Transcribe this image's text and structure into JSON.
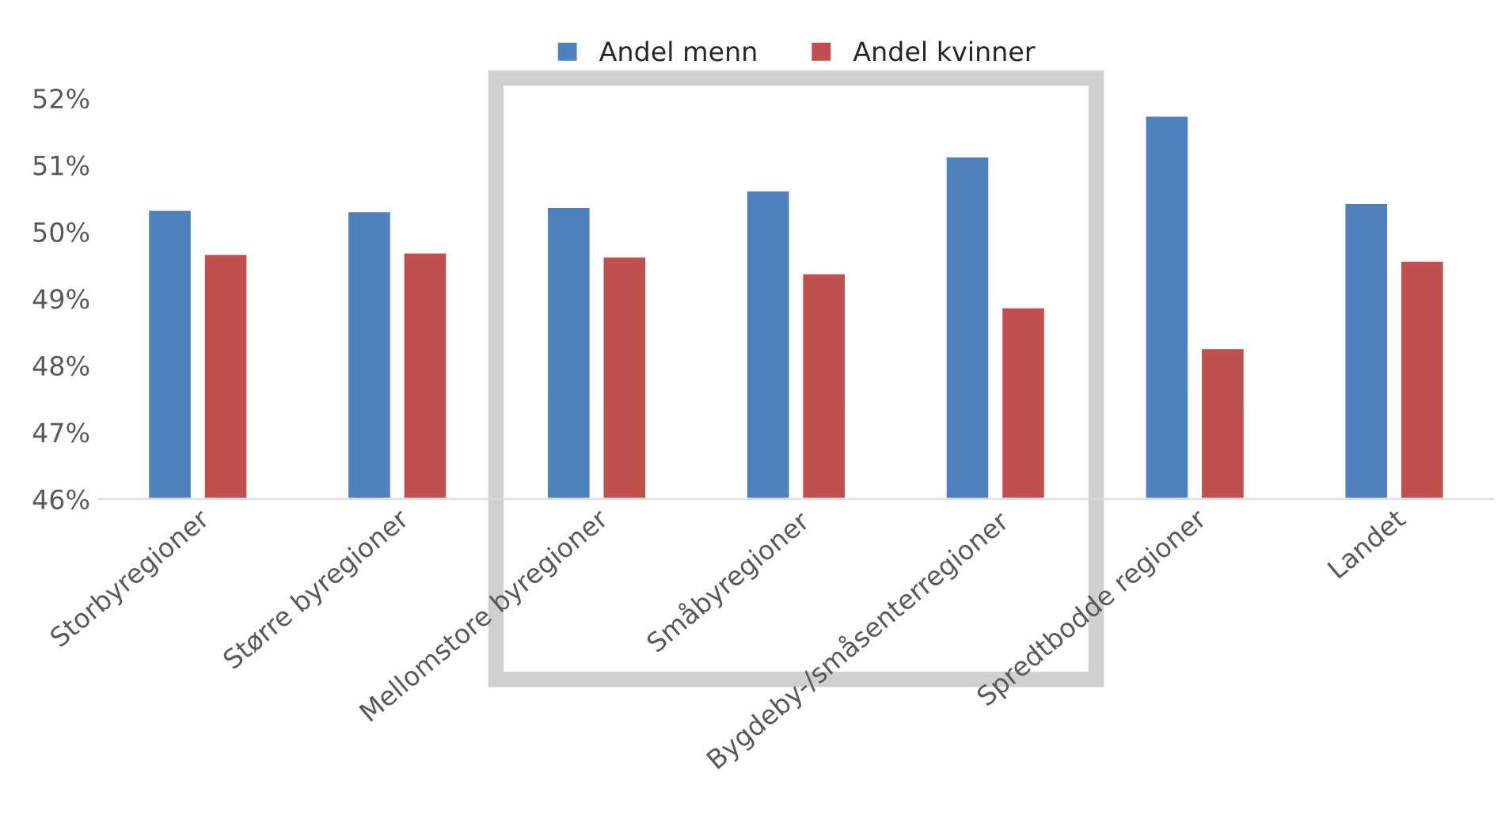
{
  "chart_data": {
    "type": "bar",
    "categories": [
      "Storbyregioner",
      "Større byregioner",
      "Mellomstore byregioner",
      "Småbyregioner",
      "Bygdeby-/småsenterregioner",
      "Spredtbodde regioner",
      "Landet"
    ],
    "series": [
      {
        "name": "Andel menn",
        "color": "#4f81bd",
        "values": [
          50.33,
          50.31,
          50.37,
          50.62,
          51.13,
          51.74,
          50.43
        ]
      },
      {
        "name": "Andel kvinner",
        "color": "#c0504d",
        "values": [
          49.67,
          49.69,
          49.63,
          49.38,
          48.87,
          48.26,
          49.57
        ]
      }
    ],
    "ylim": [
      46,
      52
    ],
    "yticks": [
      {
        "value": 46,
        "label": "46%"
      },
      {
        "value": 47,
        "label": "47%"
      },
      {
        "value": 48,
        "label": "48%"
      },
      {
        "value": 49,
        "label": "49%"
      },
      {
        "value": 50,
        "label": "50%"
      },
      {
        "value": 51,
        "label": "51%"
      },
      {
        "value": 52,
        "label": "52%"
      }
    ],
    "grid": false,
    "legend": "top"
  }
}
